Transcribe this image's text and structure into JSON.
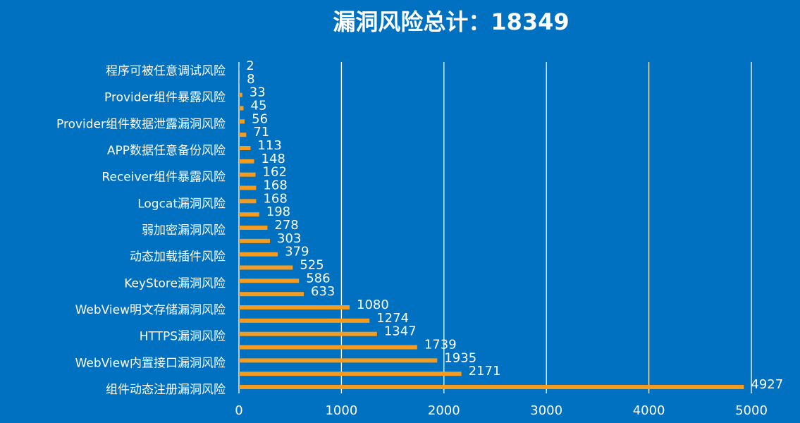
{
  "chart_data": {
    "type": "bar",
    "orientation": "horizontal",
    "title": "漏洞风险总计：18349",
    "categories": [
      "程序可被任意调试风险",
      null,
      "Provider组件暴露风险",
      null,
      "Provider组件数据泄露漏洞风险",
      null,
      "APP数据任意备份风险",
      null,
      "Receiver组件暴露风险",
      null,
      "Logcat漏洞风险",
      null,
      "弱加密漏洞风险",
      null,
      "动态加载插件风险",
      null,
      "KeyStore漏洞风险",
      null,
      "WebView明文存储漏洞风险",
      null,
      "HTTPS漏洞风险",
      null,
      "WebView内置接口漏洞风险",
      null,
      "组件动态注册漏洞风险"
    ],
    "values": [
      2,
      8,
      33,
      45,
      56,
      71,
      113,
      148,
      162,
      168,
      168,
      198,
      278,
      303,
      379,
      525,
      586,
      633,
      1080,
      1274,
      1347,
      1739,
      1935,
      2171,
      4927
    ],
    "color": "#f39c1f",
    "xlim": [
      0,
      5000
    ],
    "xticks": [
      0,
      1000,
      2000,
      3000,
      4000,
      5000
    ],
    "grid": true
  }
}
